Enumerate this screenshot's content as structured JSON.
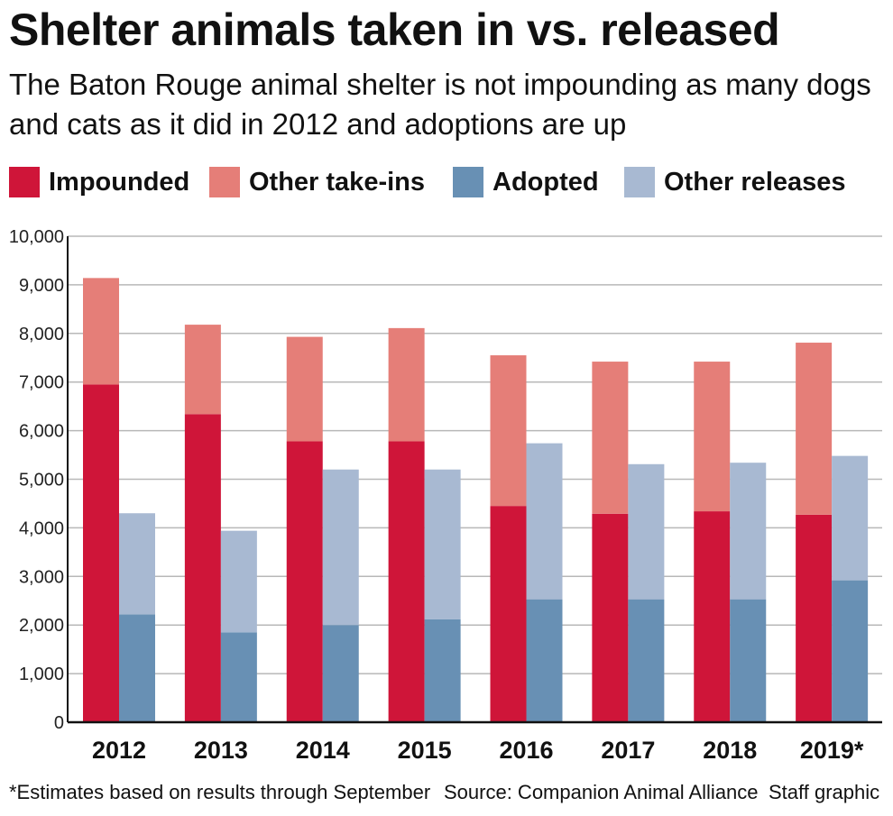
{
  "title": "Shelter animals taken in vs. released",
  "subtitle": "The Baton Rouge animal shelter is not impounding as many dogs and cats as it did in 2012 and adoptions are up",
  "footnote": "*Estimates based on results through September",
  "source": "Source: Companion Animal Alliance",
  "credit": "Staff graphic",
  "colors": {
    "impounded": "#cf1539",
    "other_take_ins": "#e57e78",
    "adopted": "#6890b4",
    "other_releases": "#a8b9d2",
    "grid": "#b8b8b8"
  },
  "chart_data": {
    "type": "bar",
    "stacked": true,
    "categories": [
      "2012",
      "2013",
      "2014",
      "2015",
      "2016",
      "2017",
      "2018",
      "2019*"
    ],
    "ylim": [
      0,
      10000
    ],
    "yticks": [
      0,
      1000,
      2000,
      3000,
      4000,
      5000,
      6000,
      7000,
      8000,
      9000,
      10000
    ],
    "ytick_labels": [
      "0",
      "1,000",
      "2,000",
      "3,000",
      "4,000",
      "5,000",
      "6,000",
      "7,000",
      "8,000",
      "9,000",
      "10,000"
    ],
    "grid": true,
    "legend": "top",
    "stacks": [
      {
        "stack": "taken-in",
        "series": [
          {
            "name": "Impounded",
            "color_key": "impounded",
            "values": [
              6950,
              6340,
              5780,
              5780,
              4450,
              4290,
              4340,
              4270
            ]
          },
          {
            "name": "Other take-ins",
            "color_key": "other_take_ins",
            "values": [
              2190,
              1840,
              2150,
              2330,
              3100,
              3130,
              3080,
              3540
            ]
          }
        ]
      },
      {
        "stack": "released",
        "series": [
          {
            "name": "Adopted",
            "color_key": "adopted",
            "values": [
              2220,
              1850,
              2000,
              2120,
              2530,
              2530,
              2530,
              2920
            ]
          },
          {
            "name": "Other releases",
            "color_key": "other_releases",
            "values": [
              2080,
              2090,
              3200,
              3080,
              3210,
              2780,
              2810,
              2560
            ]
          }
        ]
      }
    ]
  }
}
